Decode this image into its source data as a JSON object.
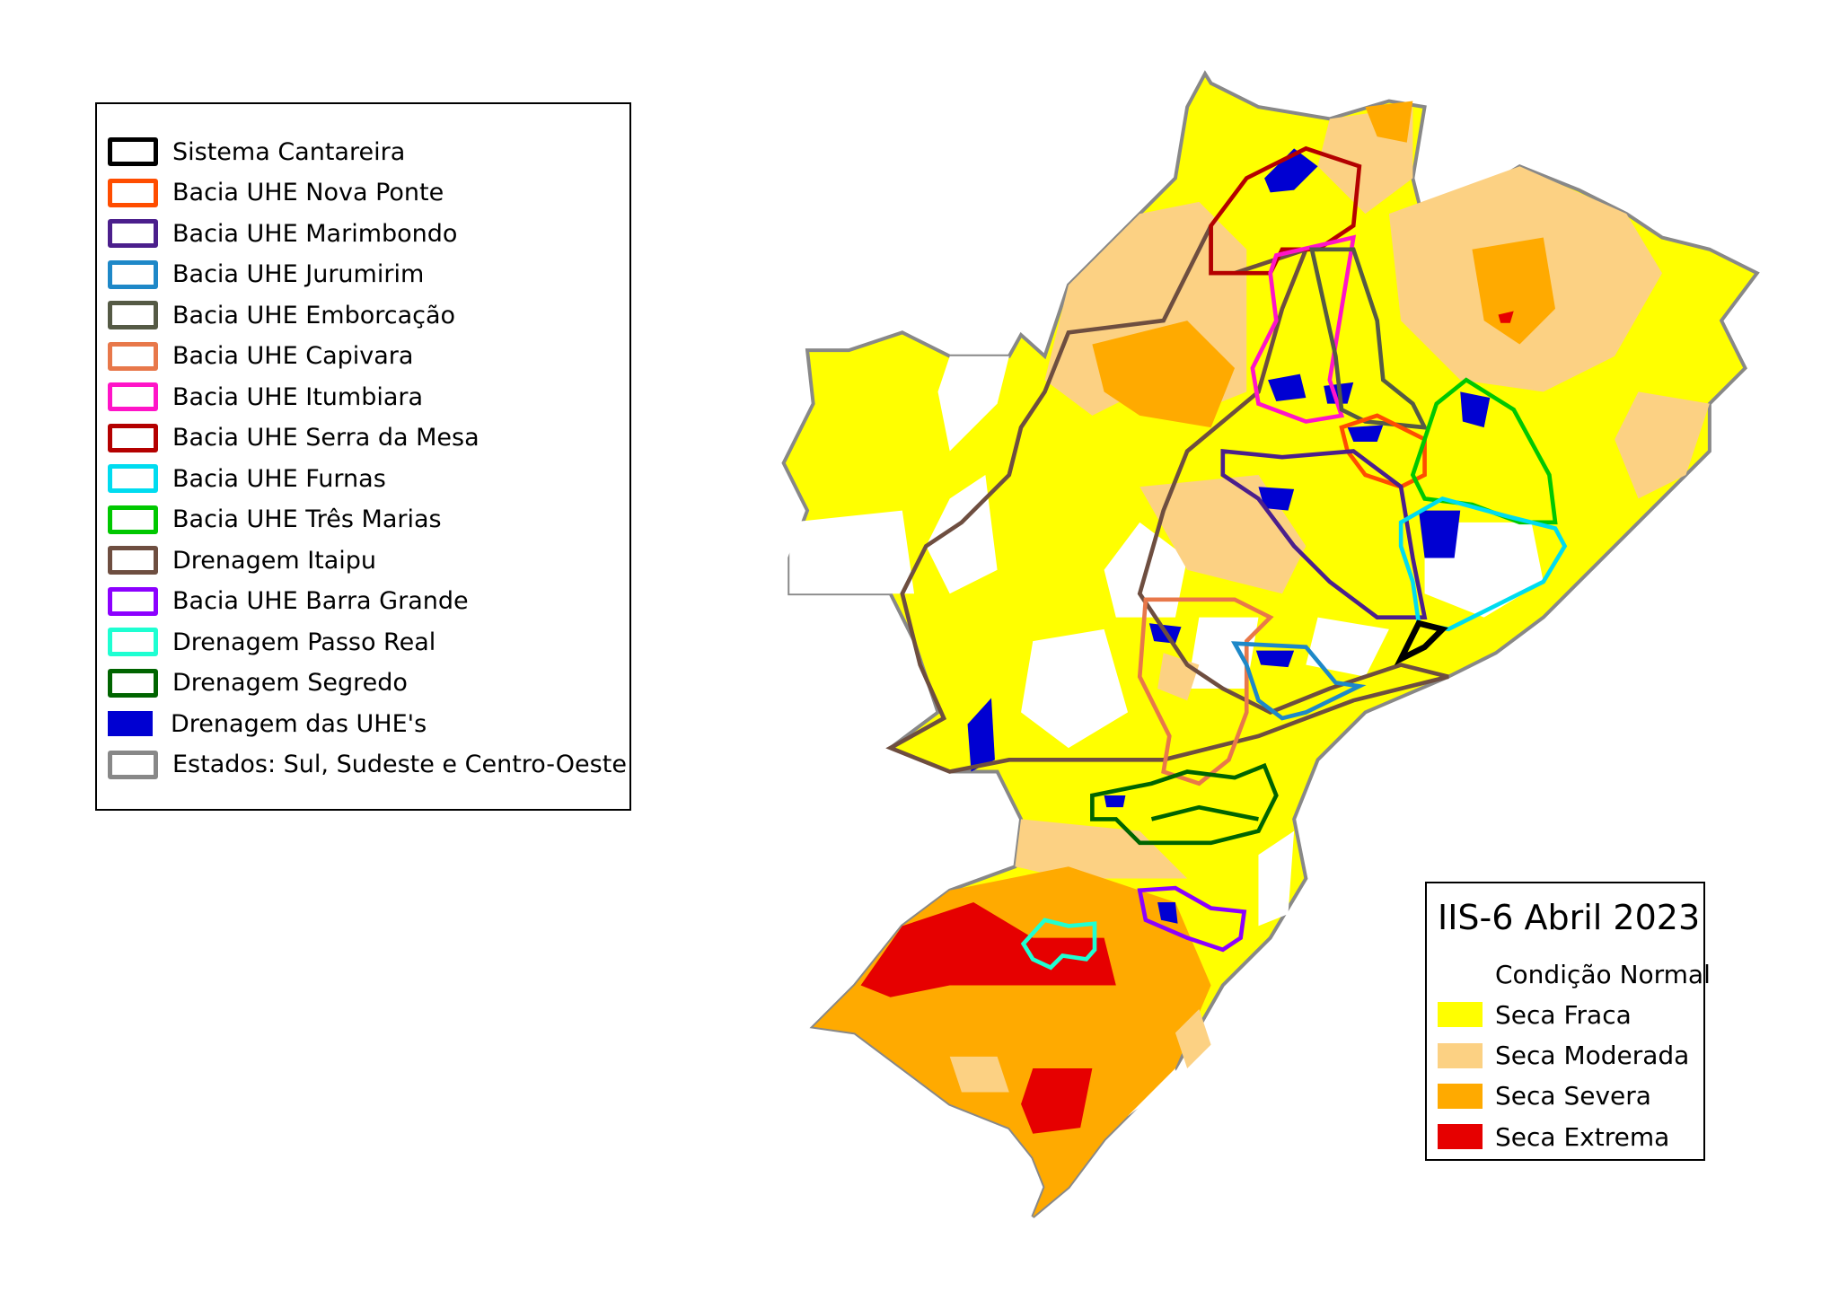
{
  "legend_basins": {
    "items": [
      {
        "label": "Sistema Cantareira",
        "color": "#000000",
        "style": "outline"
      },
      {
        "label": "Bacia UHE Nova Ponte",
        "color": "#ff4d00",
        "style": "outline"
      },
      {
        "label": "Bacia UHE Marimbondo",
        "color": "#4b1f8c",
        "style": "outline"
      },
      {
        "label": "Bacia UHE Jurumirim",
        "color": "#1e88c8",
        "style": "outline"
      },
      {
        "label": "Bacia UHE Emborcação",
        "color": "#555a45",
        "style": "outline"
      },
      {
        "label": "Bacia UHE Capivara",
        "color": "#e8784a",
        "style": "outline"
      },
      {
        "label": "Bacia UHE Itumbiara",
        "color": "#ff14c8",
        "style": "outline"
      },
      {
        "label": "Bacia UHE Serra da Mesa",
        "color": "#b40000",
        "style": "outline"
      },
      {
        "label": "Bacia UHE Furnas",
        "color": "#00dcf0",
        "style": "outline"
      },
      {
        "label": "Bacia UHE Três Marias",
        "color": "#00c800",
        "style": "outline"
      },
      {
        "label": "Drenagem Itaipu",
        "color": "#6e4e40",
        "style": "outline"
      },
      {
        "label": "Bacia UHE Barra Grande",
        "color": "#8c00ff",
        "style": "outline"
      },
      {
        "label": "Drenagem Passo Real",
        "color": "#1effd2",
        "style": "outline"
      },
      {
        "label": "Drenagem Segredo",
        "color": "#006400",
        "style": "outline"
      },
      {
        "label": "Drenagem das UHE's",
        "color": "#0000d2",
        "style": "fill"
      },
      {
        "label": "Estados: Sul, Sudeste e Centro-Oeste",
        "color": "#888888",
        "style": "outline"
      }
    ]
  },
  "legend_drought": {
    "title": "IIS-6 Abril 2023",
    "items": [
      {
        "label": "Condição Normal",
        "color": "#ffffff"
      },
      {
        "label": "Seca Fraca",
        "color": "#ffff00"
      },
      {
        "label": "Seca Moderada",
        "color": "#fcd183"
      },
      {
        "label": "Seca Severa",
        "color": "#ffaa00"
      },
      {
        "label": "Seca Extrema",
        "color": "#e60000"
      }
    ]
  }
}
